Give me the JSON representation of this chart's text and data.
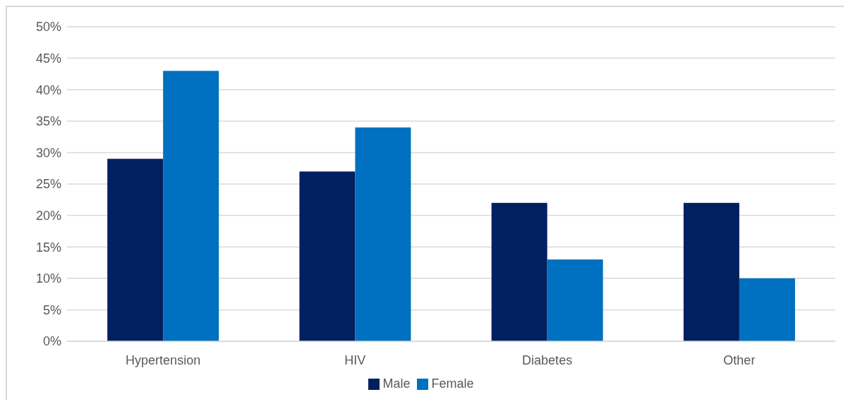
{
  "chart_data": {
    "type": "bar",
    "categories": [
      "Hypertension",
      "HIV",
      "Diabetes",
      "Other"
    ],
    "series": [
      {
        "name": "Male",
        "color": "#002060",
        "values": [
          29,
          27,
          22,
          22
        ]
      },
      {
        "name": "Female",
        "color": "#0070c0",
        "values": [
          43,
          34,
          13,
          10
        ]
      }
    ],
    "ylim": [
      0,
      50
    ],
    "yticks": [
      {
        "value": 0,
        "label": "0%"
      },
      {
        "value": 5,
        "label": "5%"
      },
      {
        "value": 10,
        "label": "10%"
      },
      {
        "value": 15,
        "label": "15%"
      },
      {
        "value": 20,
        "label": "20%"
      },
      {
        "value": 25,
        "label": "25%"
      },
      {
        "value": 30,
        "label": "30%"
      },
      {
        "value": 35,
        "label": "35%"
      },
      {
        "value": 40,
        "label": "40%"
      },
      {
        "value": 45,
        "label": "45%"
      },
      {
        "value": 50,
        "label": "50%"
      }
    ],
    "grid": "y",
    "legend": "bottom"
  }
}
